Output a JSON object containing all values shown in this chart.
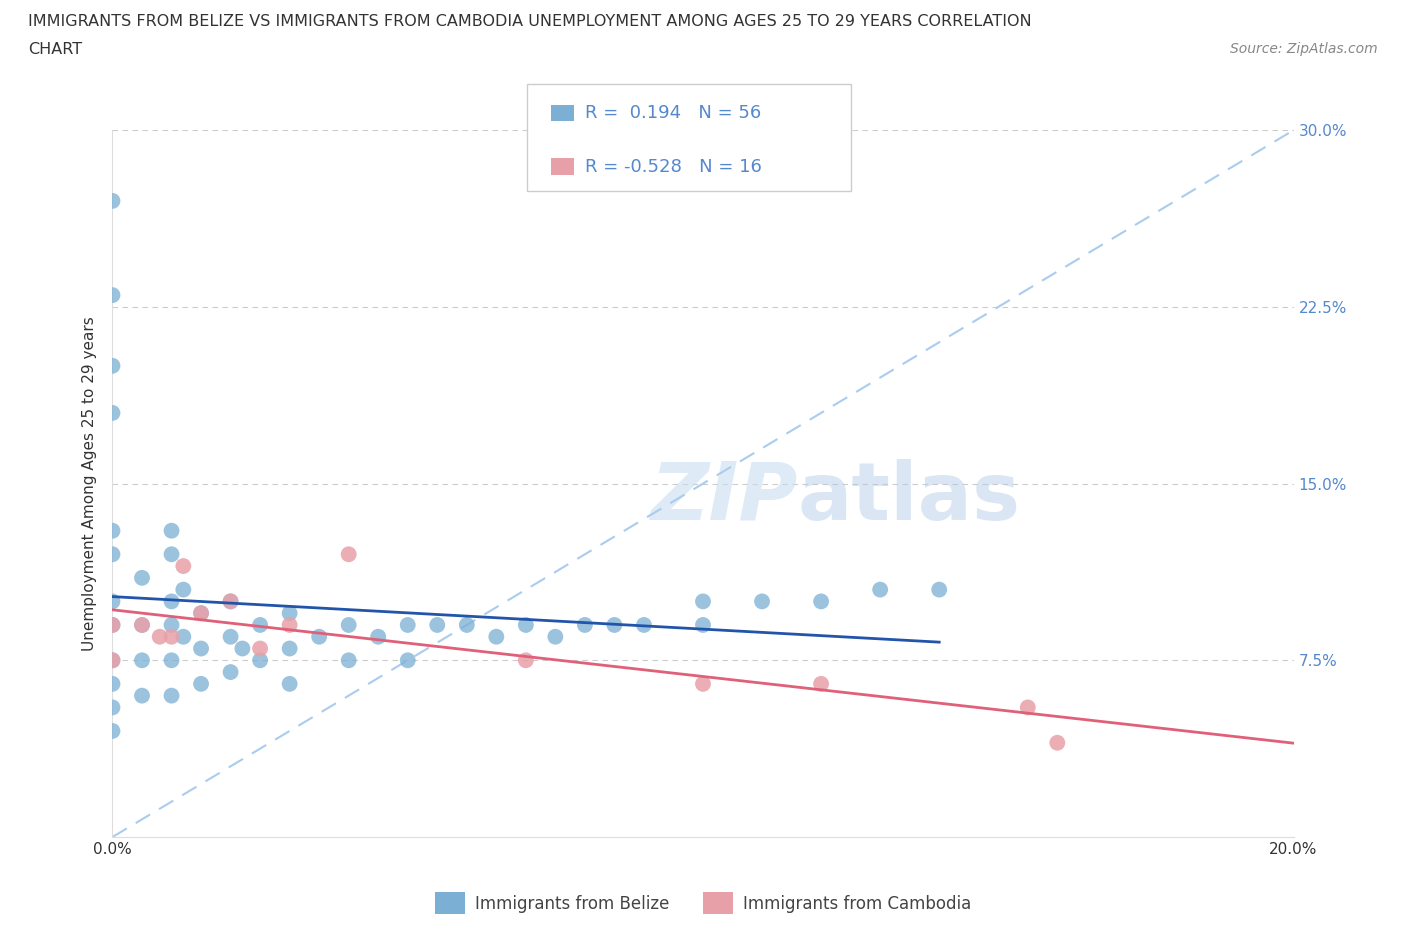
{
  "title_line1": "IMMIGRANTS FROM BELIZE VS IMMIGRANTS FROM CAMBODIA UNEMPLOYMENT AMONG AGES 25 TO 29 YEARS CORRELATION",
  "title_line2": "CHART",
  "source_text": "Source: ZipAtlas.com",
  "ylabel": "Unemployment Among Ages 25 to 29 years",
  "xlim": [
    0.0,
    0.2
  ],
  "ylim": [
    0.0,
    0.3
  ],
  "belize_color": "#7bafd4",
  "cambodia_color": "#e8a0a8",
  "belize_line_color": "#2255aa",
  "cambodia_line_color": "#e0607a",
  "ref_line_color": "#aaccee",
  "grid_color": "#cccccc",
  "belize_R": 0.194,
  "belize_N": 56,
  "cambodia_R": -0.528,
  "cambodia_N": 16,
  "ytick_color": "#5588cc",
  "xtick_color": "#333333",
  "legend_label_belize": "Immigrants from Belize",
  "legend_label_cambodia": "Immigrants from Cambodia",
  "belize_x": [
    0.0,
    0.0,
    0.0,
    0.0,
    0.0,
    0.0,
    0.0,
    0.0,
    0.0,
    0.0,
    0.0,
    0.0,
    0.005,
    0.005,
    0.005,
    0.005,
    0.01,
    0.01,
    0.01,
    0.01,
    0.01,
    0.01,
    0.012,
    0.012,
    0.015,
    0.015,
    0.015,
    0.02,
    0.02,
    0.02,
    0.022,
    0.025,
    0.025,
    0.03,
    0.03,
    0.03,
    0.035,
    0.04,
    0.04,
    0.045,
    0.05,
    0.05,
    0.055,
    0.06,
    0.065,
    0.07,
    0.075,
    0.08,
    0.085,
    0.09,
    0.1,
    0.1,
    0.11,
    0.12,
    0.13,
    0.14
  ],
  "belize_y": [
    0.27,
    0.23,
    0.2,
    0.18,
    0.13,
    0.12,
    0.1,
    0.09,
    0.075,
    0.065,
    0.055,
    0.045,
    0.11,
    0.09,
    0.075,
    0.06,
    0.13,
    0.12,
    0.1,
    0.09,
    0.075,
    0.06,
    0.105,
    0.085,
    0.095,
    0.08,
    0.065,
    0.1,
    0.085,
    0.07,
    0.08,
    0.09,
    0.075,
    0.095,
    0.08,
    0.065,
    0.085,
    0.09,
    0.075,
    0.085,
    0.09,
    0.075,
    0.09,
    0.09,
    0.085,
    0.09,
    0.085,
    0.09,
    0.09,
    0.09,
    0.1,
    0.09,
    0.1,
    0.1,
    0.105,
    0.105
  ],
  "cambodia_x": [
    0.0,
    0.0,
    0.005,
    0.008,
    0.01,
    0.012,
    0.015,
    0.02,
    0.025,
    0.03,
    0.04,
    0.07,
    0.1,
    0.12,
    0.155,
    0.16
  ],
  "cambodia_y": [
    0.09,
    0.075,
    0.09,
    0.085,
    0.085,
    0.115,
    0.095,
    0.1,
    0.08,
    0.09,
    0.12,
    0.075,
    0.065,
    0.065,
    0.055,
    0.04
  ]
}
